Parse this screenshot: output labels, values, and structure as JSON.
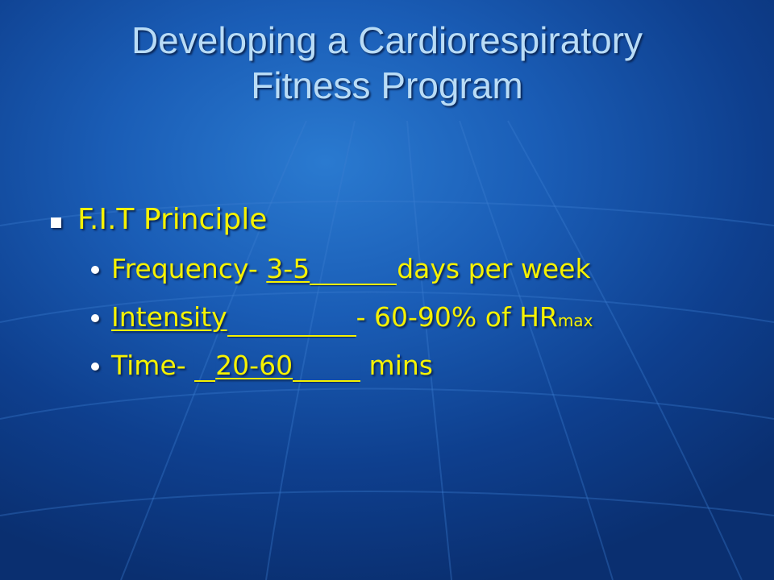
{
  "slide": {
    "title_line1": "Developing a Cardiorespiratory",
    "title_line2": "Fitness Program",
    "heading": "F.I.T Principle",
    "items": [
      {
        "label": "Frequency- ",
        "answer": "3-5",
        "rest": "days per week"
      },
      {
        "answer": "Intensity",
        "rest": "- 60-90% of HR",
        "subscript": "max"
      },
      {
        "label": "Time- ",
        "answer": "20-60",
        "rest": " mins"
      }
    ]
  },
  "colors": {
    "title": "#b9dcf6",
    "body_text": "#f6f200",
    "bullet": "#ffffff",
    "background": "#1a5db6"
  }
}
